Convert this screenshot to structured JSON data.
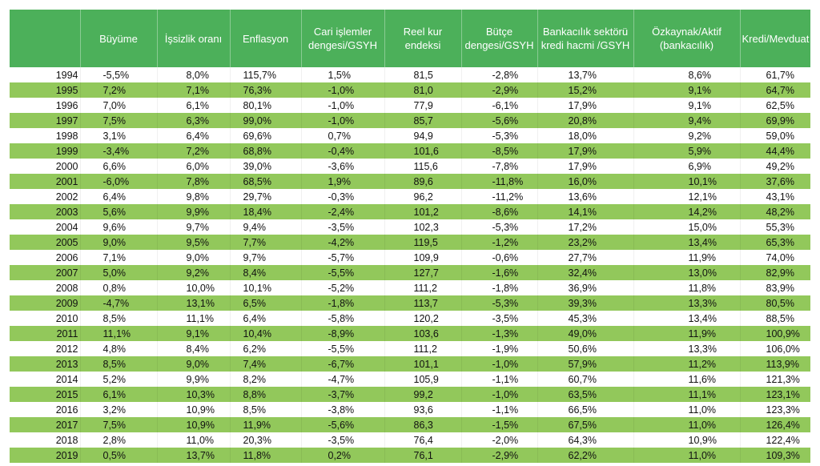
{
  "table": {
    "headers": [
      "",
      "Büyüme",
      "İşsizlik oranı",
      "Enflasyon",
      "Cari işlemler dengesi/GSYH",
      "Reel kur endeksi",
      "Bütçe dengesi/GSYH",
      "Bankacılık sektörü kredi hacmi /GSYH",
      "Özkaynak/Aktif (bankacılık)",
      "Kredi/Mevduat"
    ],
    "rows": [
      [
        "1994",
        "-5,5%",
        "8,0%",
        "115,7%",
        "1,5%",
        "81,5",
        "-2,8%",
        "13,7%",
        "8,6%",
        "61,7%"
      ],
      [
        "1995",
        "7,2%",
        "7,1%",
        "76,3%",
        "-1,0%",
        "81,0",
        "-2,9%",
        "15,2%",
        "9,1%",
        "64,7%"
      ],
      [
        "1996",
        "7,0%",
        "6,1%",
        "80,1%",
        "-1,0%",
        "77,9",
        "-6,1%",
        "17,9%",
        "9,1%",
        "62,5%"
      ],
      [
        "1997",
        "7,5%",
        "6,3%",
        "99,0%",
        "-1,0%",
        "85,7",
        "-5,6%",
        "20,8%",
        "9,4%",
        "69,9%"
      ],
      [
        "1998",
        "3,1%",
        "6,4%",
        "69,6%",
        "0,7%",
        "94,9",
        "-5,3%",
        "18,0%",
        "9,2%",
        "59,0%"
      ],
      [
        "1999",
        "-3,4%",
        "7,2%",
        "68,8%",
        "-0,4%",
        "101,6",
        "-8,5%",
        "17,9%",
        "5,9%",
        "44,4%"
      ],
      [
        "2000",
        "6,6%",
        "6,0%",
        "39,0%",
        "-3,6%",
        "115,6",
        "-7,8%",
        "17,9%",
        "6,9%",
        "49,2%"
      ],
      [
        "2001",
        "-6,0%",
        "7,8%",
        "68,5%",
        "1,9%",
        "89,6",
        "-11,8%",
        "16,0%",
        "10,1%",
        "37,6%"
      ],
      [
        "2002",
        "6,4%",
        "9,8%",
        "29,7%",
        "-0,3%",
        "96,2",
        "-11,2%",
        "13,6%",
        "12,1%",
        "43,1%"
      ],
      [
        "2003",
        "5,6%",
        "9,9%",
        "18,4%",
        "-2,4%",
        "101,2",
        "-8,6%",
        "14,1%",
        "14,2%",
        "48,2%"
      ],
      [
        "2004",
        "9,6%",
        "9,7%",
        "9,4%",
        "-3,5%",
        "102,3",
        "-5,3%",
        "17,2%",
        "15,0%",
        "55,3%"
      ],
      [
        "2005",
        "9,0%",
        "9,5%",
        "7,7%",
        "-4,2%",
        "119,5",
        "-1,2%",
        "23,2%",
        "13,4%",
        "65,3%"
      ],
      [
        "2006",
        "7,1%",
        "9,0%",
        "9,7%",
        "-5,7%",
        "109,9",
        "-0,6%",
        "27,7%",
        "11,9%",
        "74,0%"
      ],
      [
        "2007",
        "5,0%",
        "9,2%",
        "8,4%",
        "-5,5%",
        "127,7",
        "-1,6%",
        "32,4%",
        "13,0%",
        "82,9%"
      ],
      [
        "2008",
        "0,8%",
        "10,0%",
        "10,1%",
        "-5,2%",
        "111,2",
        "-1,8%",
        "36,9%",
        "11,8%",
        "83,9%"
      ],
      [
        "2009",
        "-4,7%",
        "13,1%",
        "6,5%",
        "-1,8%",
        "113,7",
        "-5,3%",
        "39,3%",
        "13,3%",
        "80,5%"
      ],
      [
        "2010",
        "8,5%",
        "11,1%",
        "6,4%",
        "-5,8%",
        "120,2",
        "-3,5%",
        "45,3%",
        "13,4%",
        "88,5%"
      ],
      [
        "2011",
        "11,1%",
        "9,1%",
        "10,4%",
        "-8,9%",
        "103,6",
        "-1,3%",
        "49,0%",
        "11,9%",
        "100,9%"
      ],
      [
        "2012",
        "4,8%",
        "8,4%",
        "6,2%",
        "-5,5%",
        "111,2",
        "-1,9%",
        "50,6%",
        "13,3%",
        "106,0%"
      ],
      [
        "2013",
        "8,5%",
        "9,0%",
        "7,4%",
        "-6,7%",
        "101,1",
        "-1,0%",
        "57,9%",
        "11,2%",
        "113,9%"
      ],
      [
        "2014",
        "5,2%",
        "9,9%",
        "8,2%",
        "-4,7%",
        "105,9",
        "-1,1%",
        "60,7%",
        "11,6%",
        "121,3%"
      ],
      [
        "2015",
        "6,1%",
        "10,3%",
        "8,8%",
        "-3,7%",
        "99,2",
        "-1,0%",
        "63,5%",
        "11,1%",
        "123,1%"
      ],
      [
        "2016",
        "3,2%",
        "10,9%",
        "8,5%",
        "-3,8%",
        "93,6",
        "-1,1%",
        "66,5%",
        "11,0%",
        "123,3%"
      ],
      [
        "2017",
        "7,5%",
        "10,9%",
        "11,9%",
        "-5,6%",
        "86,3",
        "-1,5%",
        "67,5%",
        "11,0%",
        "126,4%"
      ],
      [
        "2018",
        "2,8%",
        "11,0%",
        "20,3%",
        "-3,5%",
        "76,4",
        "-2,0%",
        "64,3%",
        "10,9%",
        "122,4%"
      ],
      [
        "2019",
        "0,5%",
        "13,7%",
        "11,8%",
        "0,2%",
        "76,1",
        "-2,9%",
        "62,2%",
        "11,0%",
        "109,3%"
      ]
    ]
  },
  "colors": {
    "header_bg": "#4cb05a",
    "stripe_bg": "#92c85b",
    "row_bg": "#ffffff"
  }
}
